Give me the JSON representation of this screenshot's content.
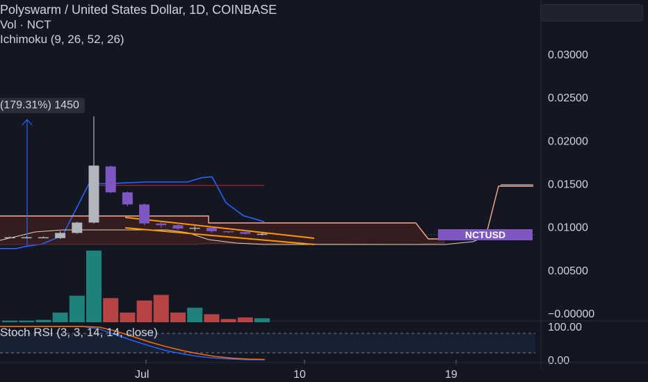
{
  "legend": {
    "title": "Polyswarm / United States Dollar, 1D, COINBASE",
    "volume": "Vol · NCT",
    "ichimoku": "Ichimoku (9, 26, 52, 26)"
  },
  "tooltip": "(179.31%) 1450",
  "price_badge": "NCTUSD",
  "stoch_title": "Stoch RSI (3, 3, 14, 14, close)",
  "colors": {
    "background": "#131722",
    "up": "#b2b5be",
    "down": "#7e57c2",
    "volume_up": "#26a69a",
    "volume_down": "#ef5350",
    "tenkan": "#2962ff",
    "kijun": "#b71c1c",
    "span_b": "#ffab91",
    "cloud": "#3a1f1f",
    "lagging": "#e0d8c0",
    "trendline": "#ff9800",
    "stoch_k": "#2962ff",
    "stoch_d": "#ff6d00"
  },
  "chart_data": [
    {
      "type": "candlestick",
      "title": "Polyswarm / United States Dollar, 1D, COINBASE",
      "ylim": [
        -0.001,
        0.032
      ],
      "y_ticks": [
        "0.03000",
        "0.02500",
        "0.02000",
        "0.01500",
        "0.01000",
        "0.00500",
        "0.00000"
      ],
      "x_ticks": [
        "Jul",
        "10",
        "19"
      ],
      "candles": [
        {
          "o": 0.0088,
          "h": 0.0089,
          "l": 0.0087,
          "c": 0.0088
        },
        {
          "o": 0.0088,
          "h": 0.0089,
          "l": 0.0087,
          "c": 0.0088
        },
        {
          "o": 0.0088,
          "h": 0.0089,
          "l": 0.0087,
          "c": 0.0088
        },
        {
          "o": 0.0087,
          "h": 0.0095,
          "l": 0.0086,
          "c": 0.0093
        },
        {
          "o": 0.0093,
          "h": 0.0106,
          "l": 0.0092,
          "c": 0.0105
        },
        {
          "o": 0.0105,
          "h": 0.0228,
          "l": 0.0104,
          "c": 0.0171
        },
        {
          "o": 0.017,
          "h": 0.0171,
          "l": 0.0139,
          "c": 0.014
        },
        {
          "o": 0.014,
          "h": 0.0141,
          "l": 0.0124,
          "c": 0.0126
        },
        {
          "o": 0.0126,
          "h": 0.0127,
          "l": 0.0102,
          "c": 0.0104
        },
        {
          "o": 0.0104,
          "h": 0.0106,
          "l": 0.0099,
          "c": 0.0102
        },
        {
          "o": 0.0102,
          "h": 0.0105,
          "l": 0.0096,
          "c": 0.0098
        },
        {
          "o": 0.0098,
          "h": 0.0101,
          "l": 0.0095,
          "c": 0.0099
        },
        {
          "o": 0.0099,
          "h": 0.01,
          "l": 0.0093,
          "c": 0.0095
        },
        {
          "o": 0.0095,
          "h": 0.0095,
          "l": 0.0093,
          "c": 0.0094
        },
        {
          "o": 0.0094,
          "h": 0.0097,
          "l": 0.0091,
          "c": 0.0092
        },
        {
          "o": 0.0092,
          "h": 0.0094,
          "l": 0.009,
          "c": 0.0092
        }
      ],
      "volume_max": 1.0,
      "volumes": [
        0.02,
        0.02,
        0.03,
        0.12,
        0.33,
        0.89,
        0.3,
        0.12,
        0.27,
        0.34,
        0.12,
        0.18,
        0.1,
        0.04,
        0.06,
        0.05
      ],
      "ichimoku": {
        "tenkan": [
          0.0075,
          0.0075,
          0.0077,
          0.008,
          0.009,
          0.015,
          0.015,
          0.0151,
          0.0152,
          0.0152,
          0.0152,
          0.0152,
          0.0157,
          0.0158,
          0.0128,
          0.0113,
          0.0106
        ],
        "kijun": [
          0.0148,
          0.0148,
          0.0148,
          0.0148,
          0.0148,
          0.0148,
          0.0148,
          0.0148,
          0.0148,
          0.0148
        ],
        "span_b": [
          0.0113,
          0.0113,
          0.0113,
          0.0113,
          0.0113,
          0.0113,
          0.0113,
          0.0113,
          0.0113,
          0.0113,
          0.0105,
          0.0105,
          0.0105,
          0.0105,
          0.0105,
          0.0105,
          0.0105,
          0.0105,
          0.0105,
          0.0105,
          0.0105,
          0.0105,
          0.0105,
          0.0105,
          0.0105,
          0.0087,
          0.0087,
          0.0087,
          0.0087,
          0.0147,
          0.0147,
          0.0147
        ],
        "lagging": [
          0.0088,
          0.009,
          0.0095,
          0.0097,
          0.0098,
          0.0098,
          0.0098,
          0.0098,
          0.0098,
          0.0095,
          0.009,
          0.0086,
          0.0084,
          0.0084,
          0.0084
        ]
      }
    },
    {
      "type": "line",
      "title": "Stoch RSI (3, 3, 14, 14, close)",
      "ylim": [
        0,
        100
      ],
      "y_ticks": [
        "100.00",
        "0.00"
      ],
      "series": [
        {
          "values": [
            100,
            100,
            100,
            100,
            100,
            100,
            92,
            75,
            58,
            42,
            28,
            18,
            10,
            5,
            2,
            0,
            0
          ]
        },
        {
          "values": [
            100,
            100,
            100,
            100,
            100,
            100,
            98,
            86,
            70,
            54,
            40,
            28,
            18,
            10,
            5,
            2,
            1
          ]
        }
      ]
    }
  ]
}
